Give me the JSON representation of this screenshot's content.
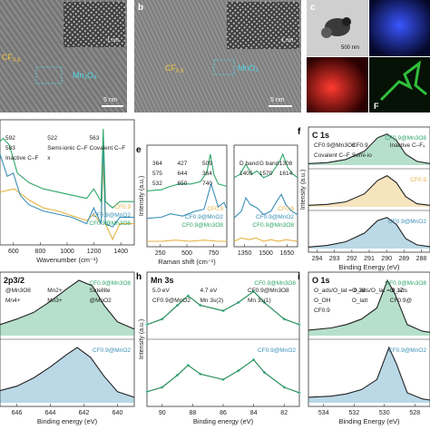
{
  "panel_letters": {
    "b": "b",
    "c": "c",
    "e": "e",
    "f": "f",
    "h": "h",
    "i": "i"
  },
  "images": {
    "a": {
      "material": "CF",
      "material_sub": "0.9",
      "oxide": "Mn",
      "oxide_sub1": "3",
      "oxide_sub_o": "O",
      "oxide_sub2": "8",
      "oxide_text": "Mn₃O₈",
      "scale": "5 nm",
      "inset_scale": "1 nm"
    },
    "b": {
      "material": "CF",
      "material_sub": "0.9",
      "oxide_text": "MnO₂",
      "scale": "5 nm",
      "inset_scale": "1 nm"
    },
    "c": {
      "scale": "500 nm",
      "map_label": "F"
    }
  },
  "colors": {
    "cf": "#e3b341",
    "mno2": "#3a8fb7",
    "mn3o8": "#2fa66a",
    "gray": "#999999",
    "red_map": "#d41a1a",
    "blue_map": "#1f2fd8",
    "green_map": "#2fbf3a"
  },
  "chart_data": [
    {
      "panel": "d",
      "type": "line",
      "xlabel": "Wavenumber (cm⁻¹)",
      "xticks": [
        "600",
        "800",
        "1000",
        "1200",
        "1400"
      ],
      "xlim": [
        500,
        1430
      ],
      "annotations": [
        "592",
        "522",
        "563",
        "583",
        "Semi-ionic C–F",
        "Covalent C–F",
        "Inactive C–F",
        "x"
      ],
      "series": [
        {
          "name": "CF0.9",
          "points": [
            [
              500,
              60
            ],
            [
              600,
              62
            ],
            [
              700,
              55
            ],
            [
              800,
              50
            ],
            [
              900,
              48
            ],
            [
              1000,
              45
            ],
            [
              1100,
              42
            ],
            [
              1150,
              46
            ],
            [
              1200,
              40
            ],
            [
              1215,
              80
            ],
            [
              1230,
              40
            ],
            [
              1280,
              30
            ],
            [
              1330,
              40
            ],
            [
              1430,
              40
            ]
          ]
        },
        {
          "name": "CF0.9@MnO2",
          "points": [
            [
              500,
              84
            ],
            [
              550,
              70
            ],
            [
              592,
              72
            ],
            [
              640,
              58
            ],
            [
              700,
              52
            ],
            [
              800,
              48
            ],
            [
              900,
              46
            ],
            [
              1000,
              44
            ],
            [
              1100,
              40
            ],
            [
              1150,
              50
            ],
            [
              1200,
              40
            ],
            [
              1215,
              92
            ],
            [
              1230,
              40
            ],
            [
              1280,
              38
            ],
            [
              1330,
              44
            ],
            [
              1430,
              44
            ]
          ]
        },
        {
          "name": "CF0.9@Mn3O8",
          "points": [
            [
              500,
              92
            ],
            [
              522,
              94
            ],
            [
              563,
              90
            ],
            [
              583,
              84
            ],
            [
              620,
              72
            ],
            [
              700,
              66
            ],
            [
              800,
              62
            ],
            [
              900,
              60
            ],
            [
              1000,
              58
            ],
            [
              1100,
              56
            ],
            [
              1150,
              62
            ],
            [
              1200,
              54
            ],
            [
              1215,
              100
            ],
            [
              1230,
              54
            ],
            [
              1280,
              50
            ],
            [
              1330,
              54
            ],
            [
              1430,
              54
            ]
          ]
        }
      ]
    },
    {
      "panel": "e-left",
      "type": "line",
      "xlabel": "Raman shift (cm⁻¹)",
      "ylabel": "Intensity (a.u.)",
      "xticks": [
        "250",
        "500",
        "750"
      ],
      "xlim": [
        200,
        760
      ],
      "annotations": [
        "364",
        "427",
        "509",
        "575",
        "644",
        "364",
        "532",
        "650",
        "740"
      ],
      "series": [
        {
          "name": "CF0.9",
          "points": [
            [
              200,
              20
            ],
            [
              300,
              20
            ],
            [
              400,
              21
            ],
            [
              500,
              20
            ],
            [
              600,
              21
            ],
            [
              700,
              20
            ],
            [
              760,
              20
            ]
          ]
        },
        {
          "name": "CF0.9@MnO2",
          "points": [
            [
              200,
              40
            ],
            [
              300,
              41
            ],
            [
              364,
              44
            ],
            [
              450,
              42
            ],
            [
              532,
              46
            ],
            [
              600,
              48
            ],
            [
              650,
              70
            ],
            [
              700,
              50
            ],
            [
              740,
              54
            ],
            [
              760,
              48
            ]
          ]
        },
        {
          "name": "CF0.9@Mn3O8",
          "points": [
            [
              200,
              64
            ],
            [
              300,
              65
            ],
            [
              364,
              68
            ],
            [
              427,
              70
            ],
            [
              509,
              70
            ],
            [
              575,
              72
            ],
            [
              620,
              80
            ],
            [
              644,
              96
            ],
            [
              670,
              78
            ],
            [
              700,
              70
            ],
            [
              760,
              68
            ]
          ]
        }
      ]
    },
    {
      "panel": "e-right",
      "type": "line",
      "xticks": [
        "1350",
        "1500",
        "1650"
      ],
      "xlim": [
        1250,
        1680
      ],
      "annotations": [
        "D band",
        "G band",
        "1308",
        "1405",
        "1570",
        "1614"
      ],
      "series": [
        {
          "name": "CF0.9",
          "points": [
            [
              1250,
              20
            ],
            [
              1300,
              22
            ],
            [
              1350,
              21
            ],
            [
              1400,
              22
            ],
            [
              1450,
              20
            ],
            [
              1500,
              21
            ],
            [
              1550,
              20
            ],
            [
              1600,
              21
            ],
            [
              1680,
              20
            ]
          ]
        },
        {
          "name": "CF0.9@MnO2",
          "points": [
            [
              1250,
              34
            ],
            [
              1300,
              38
            ],
            [
              1330,
              46
            ],
            [
              1360,
              42
            ],
            [
              1405,
              40
            ],
            [
              1450,
              36
            ],
            [
              1500,
              38
            ],
            [
              1540,
              44
            ],
            [
              1570,
              48
            ],
            [
              1600,
              42
            ],
            [
              1640,
              38
            ],
            [
              1680,
              36
            ]
          ]
        },
        {
          "name": "CF0.9@Mn3O8",
          "points": [
            [
              1250,
              58
            ],
            [
              1290,
              60
            ],
            [
              1330,
              66
            ],
            [
              1370,
              60
            ],
            [
              1405,
              62
            ],
            [
              1450,
              58
            ],
            [
              1500,
              60
            ],
            [
              1560,
              68
            ],
            [
              1580,
              72
            ],
            [
              1614,
              64
            ],
            [
              1650,
              60
            ],
            [
              1680,
              58
            ]
          ]
        }
      ]
    },
    {
      "panel": "f",
      "type": "line",
      "title": "C 1s",
      "xlabel": "Binding Energy (eV)",
      "ylabel": "Intensity (a.u.)",
      "xticks": [
        "294",
        "293",
        "292",
        "291",
        "290",
        "289",
        "288"
      ],
      "xlim": [
        294,
        287.5
      ],
      "labels": [
        "CF0.9@Mn3O8",
        "CF0.9",
        "Inactive C–Fₓ",
        "Covalent C–F",
        "Semi-io"
      ],
      "series": [
        {
          "name": "CF0.9@Mn3O8",
          "points": [
            [
              294,
              0.05
            ],
            [
              293,
              0.08
            ],
            [
              292,
              0.18
            ],
            [
              291,
              0.45
            ],
            [
              290.3,
              0.88
            ],
            [
              289.8,
              1.0
            ],
            [
              289.3,
              0.8
            ],
            [
              288.8,
              0.35
            ],
            [
              288.2,
              0.12
            ],
            [
              287.5,
              0.05
            ]
          ]
        },
        {
          "name": "CF0.9",
          "points": [
            [
              294,
              0.05
            ],
            [
              293,
              0.08
            ],
            [
              292,
              0.16
            ],
            [
              291,
              0.42
            ],
            [
              290.3,
              0.85
            ],
            [
              289.8,
              1.0
            ],
            [
              289.3,
              0.78
            ],
            [
              288.8,
              0.33
            ],
            [
              288.2,
              0.1
            ],
            [
              287.5,
              0.05
            ]
          ]
        },
        {
          "name": "CF0.9@MnO2",
          "points": [
            [
              294,
              0.05
            ],
            [
              293,
              0.1
            ],
            [
              292,
              0.22
            ],
            [
              291,
              0.5
            ],
            [
              290.3,
              0.9
            ],
            [
              289.8,
              1.0
            ],
            [
              289.3,
              0.78
            ],
            [
              288.8,
              0.32
            ],
            [
              288.2,
              0.12
            ],
            [
              287.5,
              0.06
            ]
          ]
        }
      ]
    },
    {
      "panel": "g",
      "type": "line",
      "title": "2p3/2",
      "xlabel": "Binding energy (eV)",
      "xticks": [
        "646",
        "644",
        "642",
        "640"
      ],
      "labels": [
        "@Mn3O8",
        "Mn2+",
        "Satellite",
        "Mn4+",
        "Mn3+",
        "@MnO2"
      ],
      "series": [
        {
          "name": "CF0.9@Mn3O8",
          "points": [
            [
              647,
              0.2
            ],
            [
              646,
              0.3
            ],
            [
              645,
              0.42
            ],
            [
              644,
              0.62
            ],
            [
              643,
              0.85
            ],
            [
              642.3,
              1.0
            ],
            [
              641.5,
              0.9
            ],
            [
              640.8,
              0.55
            ],
            [
              640,
              0.25
            ],
            [
              639,
              0.12
            ]
          ]
        },
        {
          "name": "CF0.9@MnO2",
          "points": [
            [
              647,
              0.22
            ],
            [
              646,
              0.3
            ],
            [
              645,
              0.45
            ],
            [
              644,
              0.65
            ],
            [
              643,
              0.88
            ],
            [
              642.4,
              1.0
            ],
            [
              641.6,
              0.82
            ],
            [
              640.8,
              0.48
            ],
            [
              640,
              0.2
            ],
            [
              639,
              0.1
            ]
          ]
        }
      ]
    },
    {
      "panel": "h",
      "type": "scatter",
      "title": "Mn 3s",
      "xlabel": "Binding energy (eV)",
      "ylabel": "Intensity (a.u.)",
      "xticks": [
        "90",
        "88",
        "86",
        "84",
        "82"
      ],
      "xlim": [
        91,
        81
      ],
      "labels": [
        "5.0 eV",
        "4.7 eV",
        "CF0.9@Mn3O8",
        "CF0.9@MnO2",
        "Mn 3s(2)",
        "Mn 3s(1)"
      ],
      "series": [
        {
          "name": "CF0.9@Mn3O8",
          "points": [
            [
              91,
              0.2
            ],
            [
              90,
              0.3
            ],
            [
              89,
              0.55
            ],
            [
              88.3,
              0.72
            ],
            [
              87.5,
              0.55
            ],
            [
              86,
              0.45
            ],
            [
              85,
              0.6
            ],
            [
              84,
              0.8
            ],
            [
              83.3,
              0.6
            ],
            [
              82,
              0.3
            ],
            [
              81,
              0.2
            ]
          ]
        },
        {
          "name": "CF0.9@MnO2",
          "points": [
            [
              91,
              0.2
            ],
            [
              90,
              0.28
            ],
            [
              89,
              0.5
            ],
            [
              88.3,
              0.68
            ],
            [
              87.5,
              0.52
            ],
            [
              86,
              0.42
            ],
            [
              85,
              0.58
            ],
            [
              84,
              0.78
            ],
            [
              83.3,
              0.55
            ],
            [
              82,
              0.28
            ],
            [
              81,
              0.18
            ]
          ]
        }
      ]
    },
    {
      "panel": "i",
      "type": "line",
      "title": "O 1s",
      "xlabel": "Binding Energy (eV)",
      "xticks": [
        "534",
        "532",
        "530",
        "528"
      ],
      "xlim": [
        535.5,
        527.5
      ],
      "labels": [
        "O_ads/O_lat = 0.29",
        "O_ads/O_lat = 0.17",
        "O_ads",
        "O_OH",
        "O_latt",
        "CF0.9@",
        "CF0.9"
      ],
      "series": [
        {
          "name": "CF0.9@Mn3O8",
          "points": [
            [
              535.5,
              0.1
            ],
            [
              534,
              0.14
            ],
            [
              533,
              0.2
            ],
            [
              532,
              0.3
            ],
            [
              531,
              0.5
            ],
            [
              530.3,
              1.0
            ],
            [
              529.8,
              0.75
            ],
            [
              529,
              0.2
            ],
            [
              528,
              0.08
            ],
            [
              527.5,
              0.06
            ]
          ]
        },
        {
          "name": "CF0.9@MnO2",
          "points": [
            [
              535.5,
              0.1
            ],
            [
              534,
              0.12
            ],
            [
              533,
              0.16
            ],
            [
              532,
              0.24
            ],
            [
              531,
              0.42
            ],
            [
              530.2,
              1.0
            ],
            [
              529.7,
              0.7
            ],
            [
              529,
              0.18
            ],
            [
              528,
              0.07
            ],
            [
              527.5,
              0.05
            ]
          ]
        }
      ]
    }
  ]
}
